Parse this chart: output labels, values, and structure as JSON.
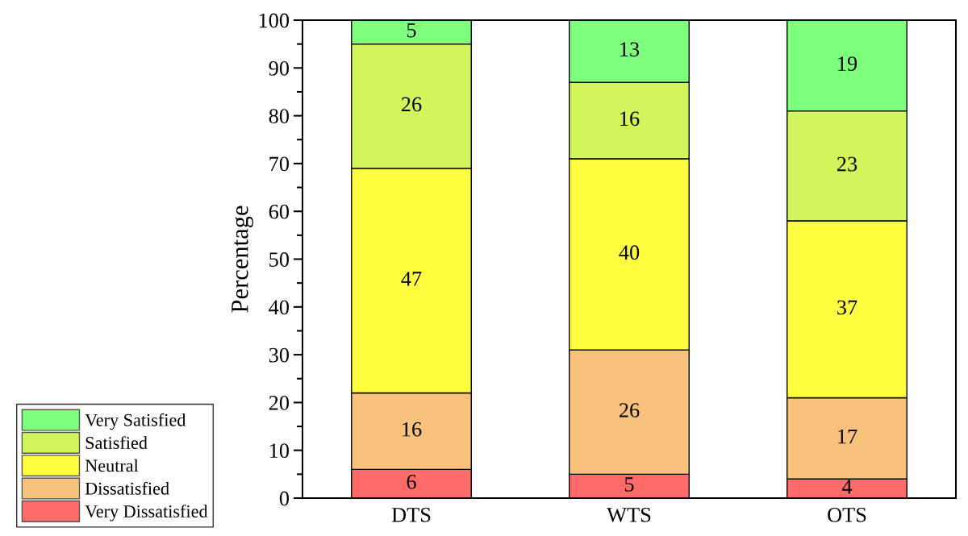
{
  "chart_data": {
    "type": "bar",
    "stacked": true,
    "ylabel": "Percentage",
    "categories": [
      "DTS",
      "WTS",
      "OTS"
    ],
    "series": [
      {
        "name": "Very Dissatisfied",
        "color": "#ff6b6b",
        "values": [
          6,
          5,
          4
        ]
      },
      {
        "name": "Dissatisfied",
        "color": "#f8c27c",
        "values": [
          16,
          26,
          17
        ]
      },
      {
        "name": "Neutral",
        "color": "#ffff40",
        "values": [
          47,
          40,
          37
        ]
      },
      {
        "name": "Satisfied",
        "color": "#d2f55c",
        "values": [
          26,
          16,
          23
        ]
      },
      {
        "name": "Very Satisfied",
        "color": "#7eff7e",
        "values": [
          5,
          13,
          19
        ]
      }
    ],
    "ylim": [
      0,
      100
    ],
    "yticks": [
      0,
      10,
      20,
      30,
      40,
      50,
      60,
      70,
      80,
      90,
      100
    ],
    "data_labels": true,
    "legend": "bottom left",
    "grid": false
  }
}
